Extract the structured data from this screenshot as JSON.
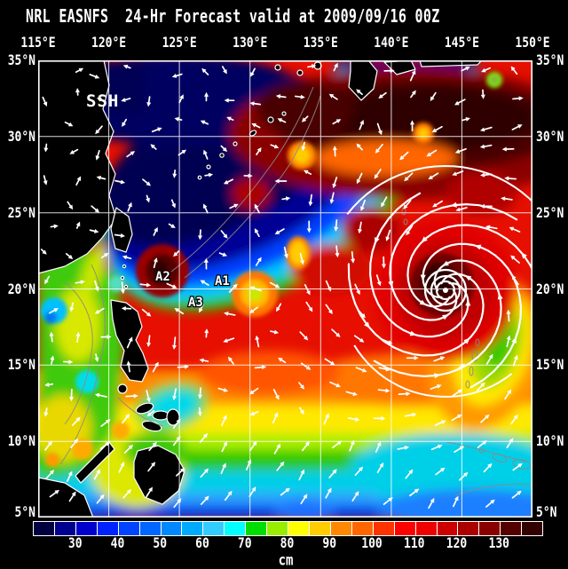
{
  "title": "NRL EASNFS  24-Hr Forecast valid at 2009/09/16 00Z",
  "map": {
    "field_label": "SSH",
    "annotations": [
      {
        "label": "A1",
        "fx": 0.357,
        "fy": 0.492
      },
      {
        "label": "A2",
        "fx": 0.237,
        "fy": 0.482
      },
      {
        "label": "A3",
        "fx": 0.303,
        "fy": 0.538
      }
    ],
    "lon_ticks": [
      "115°E",
      "120°E",
      "125°E",
      "130°E",
      "135°E",
      "140°E",
      "145°E",
      "150°E"
    ],
    "lat_ticks": [
      "35°N",
      "30°N",
      "25°N",
      "20°N",
      "15°N",
      "10°N",
      "5°N"
    ]
  },
  "colorbar": {
    "unit": "cm",
    "range_min": 20,
    "range_max": 140,
    "tick_values": [
      30,
      40,
      50,
      60,
      70,
      80,
      90,
      100,
      110,
      120,
      130
    ],
    "segment_colors": [
      "#000040",
      "#000090",
      "#0000cc",
      "#0022ff",
      "#0044ff",
      "#0066ff",
      "#0088ff",
      "#00aaff",
      "#33ccff",
      "#00ffff",
      "#00dd00",
      "#99ee00",
      "#ffff00",
      "#ffcc00",
      "#ff8800",
      "#ff6600",
      "#ff3300",
      "#ff0000",
      "#ee0000",
      "#cc0000",
      "#aa0000",
      "#880000",
      "#550000",
      "#330000"
    ]
  },
  "colors": {
    "background": "#000000",
    "base_field": "#e60f00",
    "grid": "#ffffff",
    "coastline": "#ffffff",
    "contour": "#8a8a8a",
    "vectors": "#ffffff"
  }
}
